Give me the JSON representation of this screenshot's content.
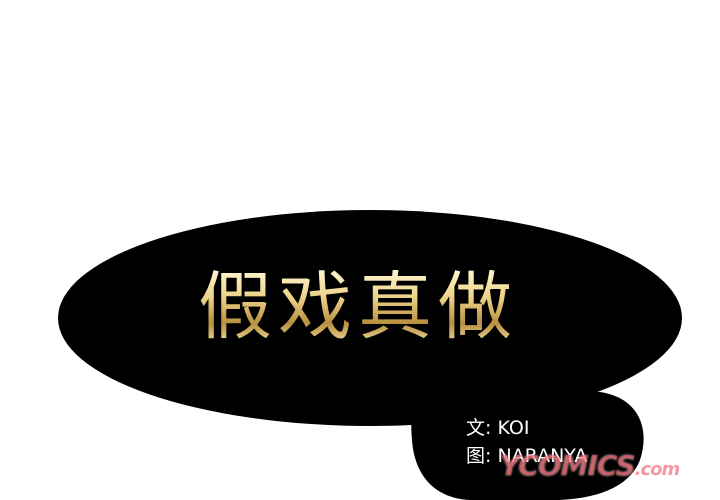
{
  "title": {
    "text": "假戏真做"
  },
  "credits": {
    "writer": "文: KOI",
    "artist": "图: NARANYA"
  },
  "watermark": {
    "main": "YCOMICS",
    "suffix": ".com"
  },
  "colors": {
    "background": "#ffffff",
    "blob": "#000000",
    "title_gold": "#e6cf8a",
    "credit_text": "#ffffff",
    "watermark": "#eb4650"
  }
}
